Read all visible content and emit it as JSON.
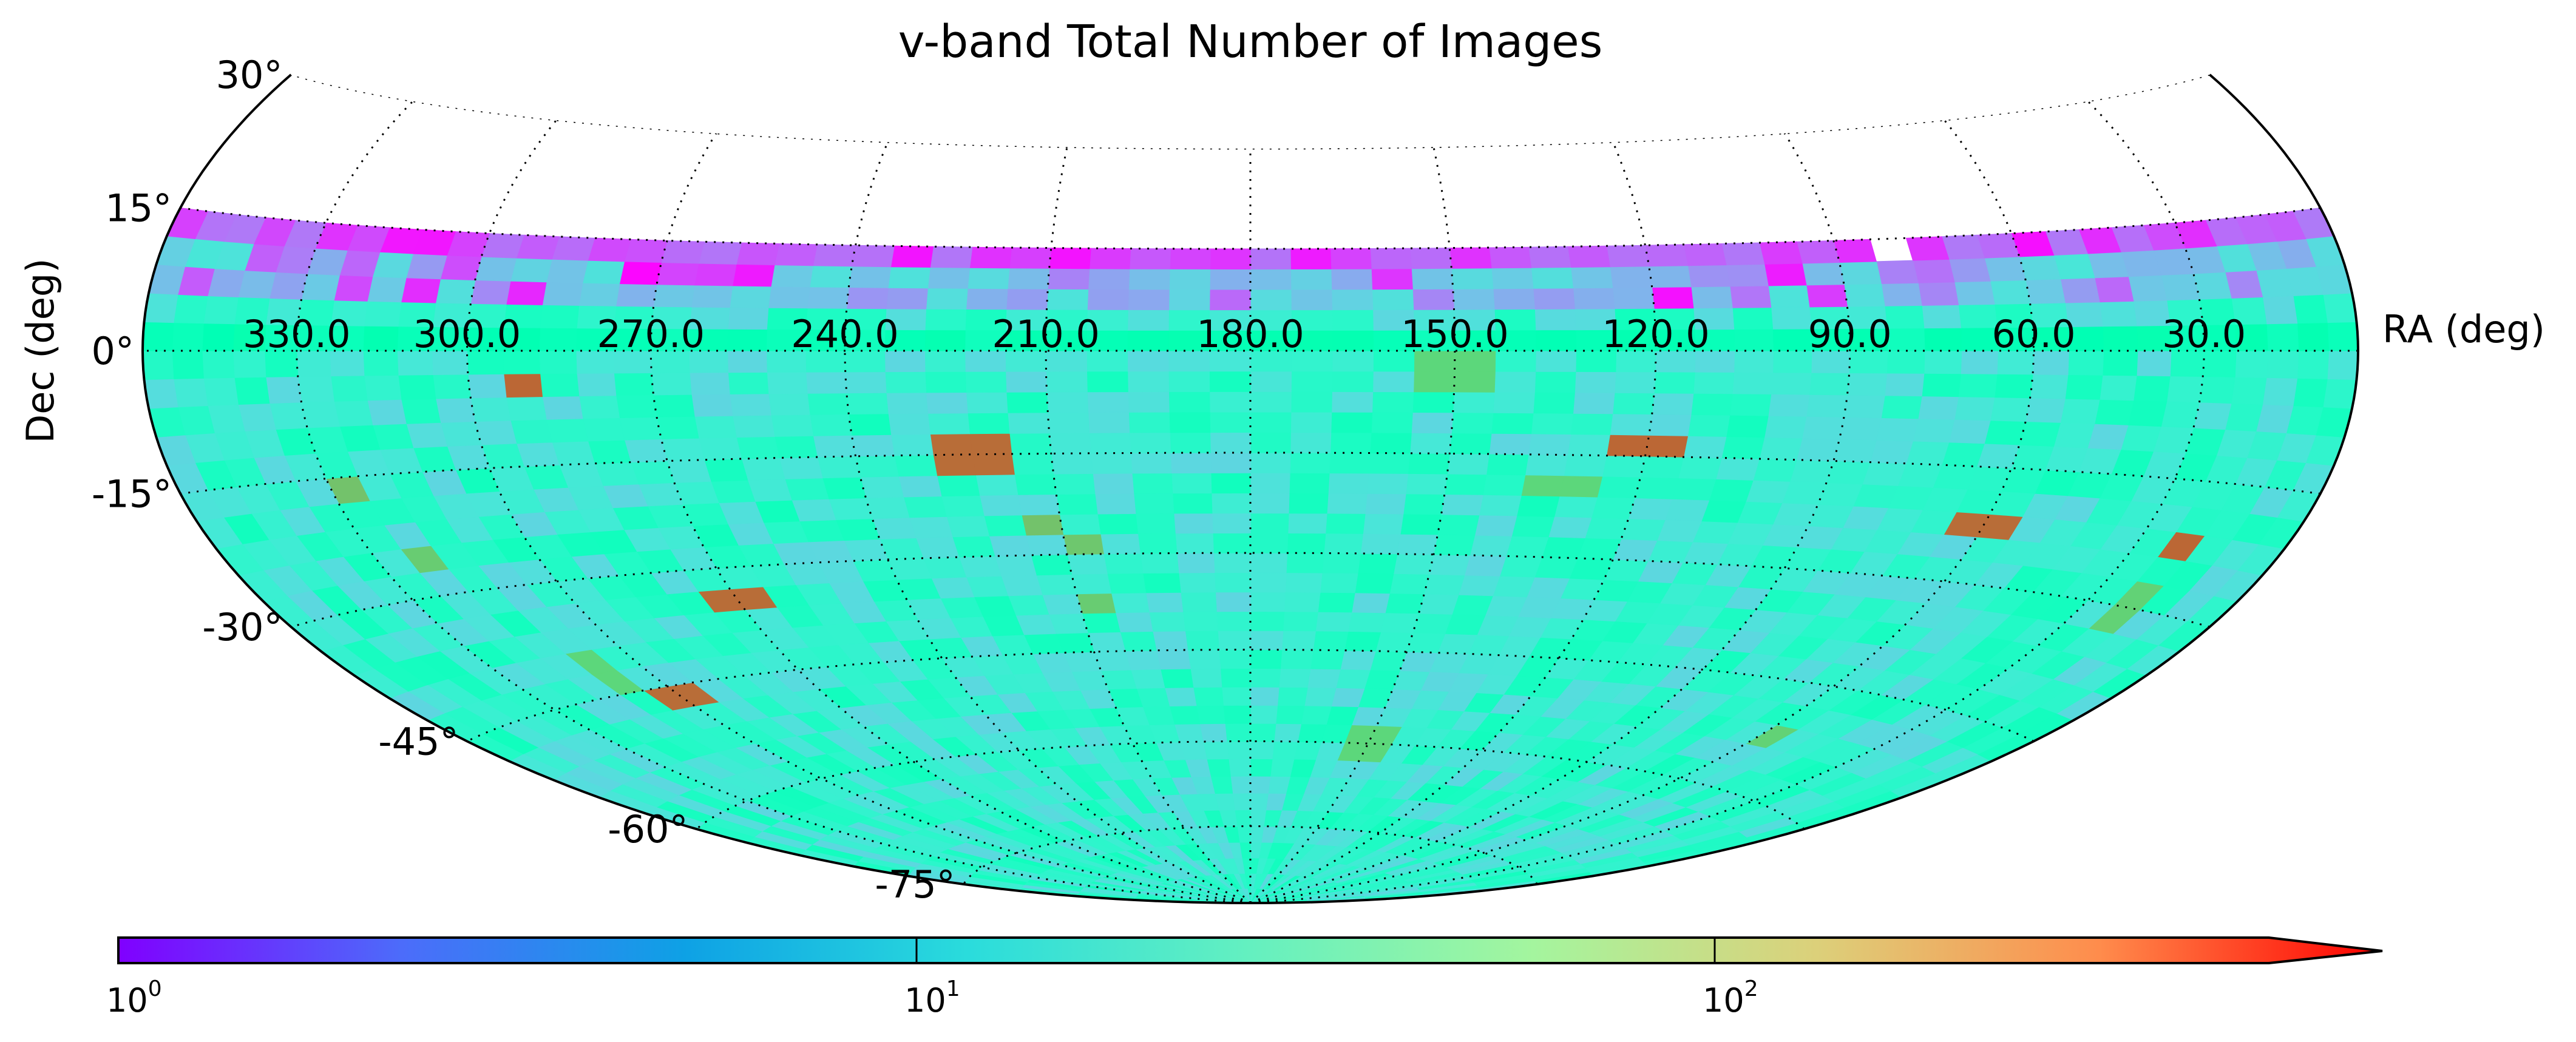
{
  "chart_data": {
    "type": "heatmap",
    "projection": "hammer",
    "title": "v-band Total Number of Images",
    "xlabel": "RA (deg)",
    "ylabel": "Dec (deg)",
    "x_ticks": [
      "330.0",
      "300.0",
      "270.0",
      "240.0",
      "210.0",
      "180.0",
      "150.0",
      "120.0",
      "90.0",
      "60.0",
      "30.0"
    ],
    "y_ticks": [
      "30°",
      "15°",
      "0°",
      "-15°",
      "-30°",
      "-45°",
      "-60°",
      "-75°"
    ],
    "ra_range": [
      0,
      360
    ],
    "dec_range": [
      -90,
      30
    ],
    "coverage_dec": [
      -90,
      15
    ],
    "grid": true,
    "colorbar": {
      "scale": "log",
      "range": [
        1,
        1000
      ],
      "ticks": [
        {
          "base": "10",
          "exp": "0"
        },
        {
          "base": "10",
          "exp": "1"
        },
        {
          "base": "10",
          "exp": "2"
        }
      ],
      "extend": "max",
      "colormap": "rainbow"
    },
    "typical_value": 15,
    "north_edge_value_range": [
      1,
      4
    ],
    "red_hotspots": [
      {
        "ra": 292,
        "dec": -5,
        "value": 400
      },
      {
        "ra": 222,
        "dec": -15,
        "value": 380
      },
      {
        "ra": 120,
        "dec": -13,
        "value": 400
      },
      {
        "ra": 60,
        "dec": -22,
        "value": 380
      },
      {
        "ra": 20,
        "dec": -22,
        "value": 400
      },
      {
        "ra": 270,
        "dec": -35,
        "value": 380
      },
      {
        "ra": 300,
        "dec": -46,
        "value": 380
      }
    ],
    "orange_spots": [
      {
        "ra": 325,
        "dec": -16,
        "value": 150
      },
      {
        "ra": 320,
        "dec": -25,
        "value": 130
      },
      {
        "ra": 211,
        "dec": -26,
        "value": 150
      },
      {
        "ra": 205,
        "dec": -28,
        "value": 140
      },
      {
        "ra": 206,
        "dec": -38,
        "value": 130
      },
      {
        "ra": 150,
        "dec": -3,
        "value": 110
      },
      {
        "ra": 132,
        "dec": -20,
        "value": 110
      },
      {
        "ra": 20,
        "dec": -30,
        "value": 120
      },
      {
        "ra": 55,
        "dec": -52,
        "value": 120
      },
      {
        "ra": 150,
        "dec": -60,
        "value": 110
      },
      {
        "ra": 310,
        "dec": -42,
        "value": 110
      }
    ]
  }
}
